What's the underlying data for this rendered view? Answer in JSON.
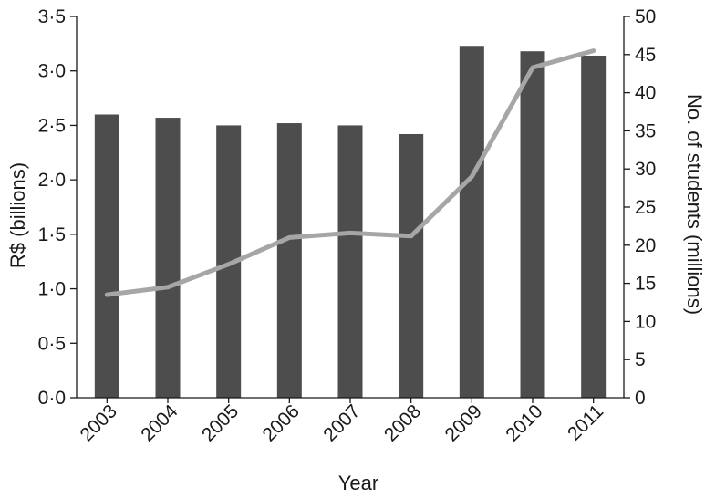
{
  "chart_data": {
    "type": "bar",
    "categories": [
      "2003",
      "2004",
      "2005",
      "2006",
      "2007",
      "2008",
      "2009",
      "2010",
      "2011"
    ],
    "xlabel": "Year",
    "series": [
      {
        "type": "bar",
        "axis": "left",
        "color": "#4d4d4d",
        "values": [
          2.6,
          2.57,
          2.5,
          2.52,
          2.5,
          2.42,
          3.23,
          3.18,
          3.14
        ]
      },
      {
        "type": "line",
        "axis": "right",
        "color": "#a6a6a6",
        "values": [
          13.5,
          14.5,
          17.5,
          21,
          21.6,
          21.2,
          29,
          43.3,
          45.5
        ]
      }
    ],
    "y_left": {
      "label": "R$ (billions)",
      "ylim": [
        0,
        3.5
      ],
      "ticks": [
        0,
        0.5,
        1,
        1.5,
        2,
        2.5,
        3,
        3.5
      ],
      "tick_labels": [
        "0·0",
        "0·5",
        "1·0",
        "1·5",
        "2·0",
        "2·5",
        "3·0",
        "3·5"
      ]
    },
    "y_right": {
      "label": "No. of students (millions)",
      "ylim": [
        0,
        50
      ],
      "ticks": [
        0,
        5,
        10,
        15,
        20,
        25,
        30,
        35,
        40,
        45,
        50
      ],
      "tick_labels": [
        "0",
        "5",
        "10",
        "15",
        "20",
        "25",
        "30",
        "35",
        "40",
        "45",
        "50"
      ]
    },
    "grid": false,
    "legend": "none"
  }
}
